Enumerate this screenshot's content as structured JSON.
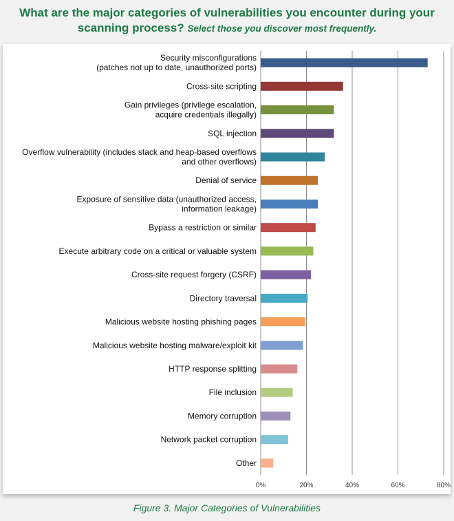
{
  "title_main": "What are the major categories of vulnerabilities you encounter during your scanning process?",
  "title_sub": "Select those you discover most frequently.",
  "caption": "Figure 3. Major Categories of Vulnerabilities",
  "chart_data": {
    "type": "bar",
    "orientation": "horizontal",
    "xlim": [
      0,
      80
    ],
    "xticks": [
      "0%",
      "20%",
      "40%",
      "60%",
      "80%"
    ],
    "grid": true,
    "categories": [
      {
        "label": [
          "Security misconfigurations",
          "(patches not up to date, unauthorized ports)"
        ],
        "value": 73,
        "color": "#385d8a"
      },
      {
        "label": [
          "Cross-site scripting"
        ],
        "value": 36,
        "color": "#953735"
      },
      {
        "label": [
          "Gain privileges (privilege escalation,",
          "acquire credentials illegally)"
        ],
        "value": 32,
        "color": "#76923c"
      },
      {
        "label": [
          "SQL injection"
        ],
        "value": 32,
        "color": "#5f497a"
      },
      {
        "label": [
          "Overflow vulnerability (includes stack and heap-based overflows",
          "and other overflows)"
        ],
        "value": 28,
        "color": "#31859c"
      },
      {
        "label": [
          "Denial of service"
        ],
        "value": 25,
        "color": "#c0712a"
      },
      {
        "label": [
          "Exposure of sensitive data (unauthorized access,",
          "information leakage)"
        ],
        "value": 25,
        "color": "#4a7ebb"
      },
      {
        "label": [
          "Bypass a restriction or similar"
        ],
        "value": 24,
        "color": "#be4b48"
      },
      {
        "label": [
          "Execute arbitrary code on a critical or valuable system"
        ],
        "value": 23,
        "color": "#98b954"
      },
      {
        "label": [
          "Cross-site request forgery (CSRF)"
        ],
        "value": 22,
        "color": "#7d60a0"
      },
      {
        "label": [
          "Directory traversal"
        ],
        "value": 20.5,
        "color": "#46aac5"
      },
      {
        "label": [
          "Malicious website hosting phishing pages"
        ],
        "value": 19.5,
        "color": "#f59d56"
      },
      {
        "label": [
          "Malicious website hosting malware/exploit kit"
        ],
        "value": 18.5,
        "color": "#7f9fd0"
      },
      {
        "label": [
          "HTTP response splitting"
        ],
        "value": 16,
        "color": "#d88c8b"
      },
      {
        "label": [
          "File inclusion"
        ],
        "value": 14,
        "color": "#b3cc82"
      },
      {
        "label": [
          "Memory corruption"
        ],
        "value": 13,
        "color": "#9c8fba"
      },
      {
        "label": [
          "Network packet corruption"
        ],
        "value": 12,
        "color": "#7fc4d8"
      },
      {
        "label": [
          "Other"
        ],
        "value": 5.5,
        "color": "#fab08a"
      }
    ]
  }
}
